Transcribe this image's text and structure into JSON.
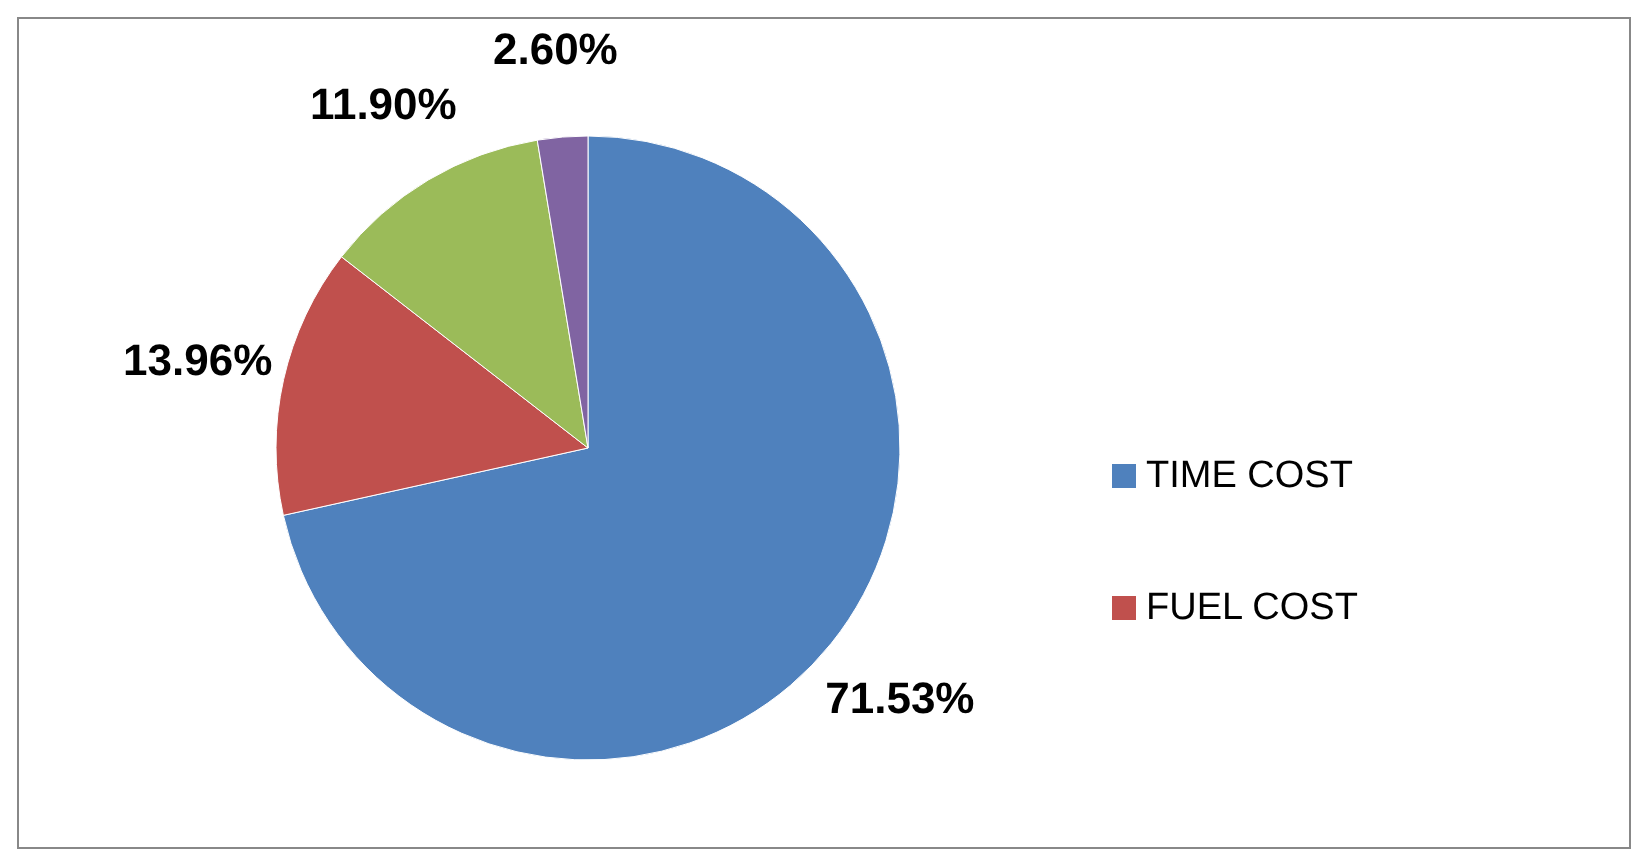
{
  "chart_data": {
    "type": "pie",
    "categories": [
      "TIME COST",
      "FUEL COST",
      null,
      null
    ],
    "values": [
      71.53,
      13.96,
      11.9,
      2.6
    ],
    "value_labels": [
      "71.53%",
      "13.96%",
      "11.90%",
      "2.60%"
    ],
    "colors": [
      "#4f81bd",
      "#c0504d",
      "#9bbb59",
      "#8064a2"
    ],
    "legend": "right"
  }
}
